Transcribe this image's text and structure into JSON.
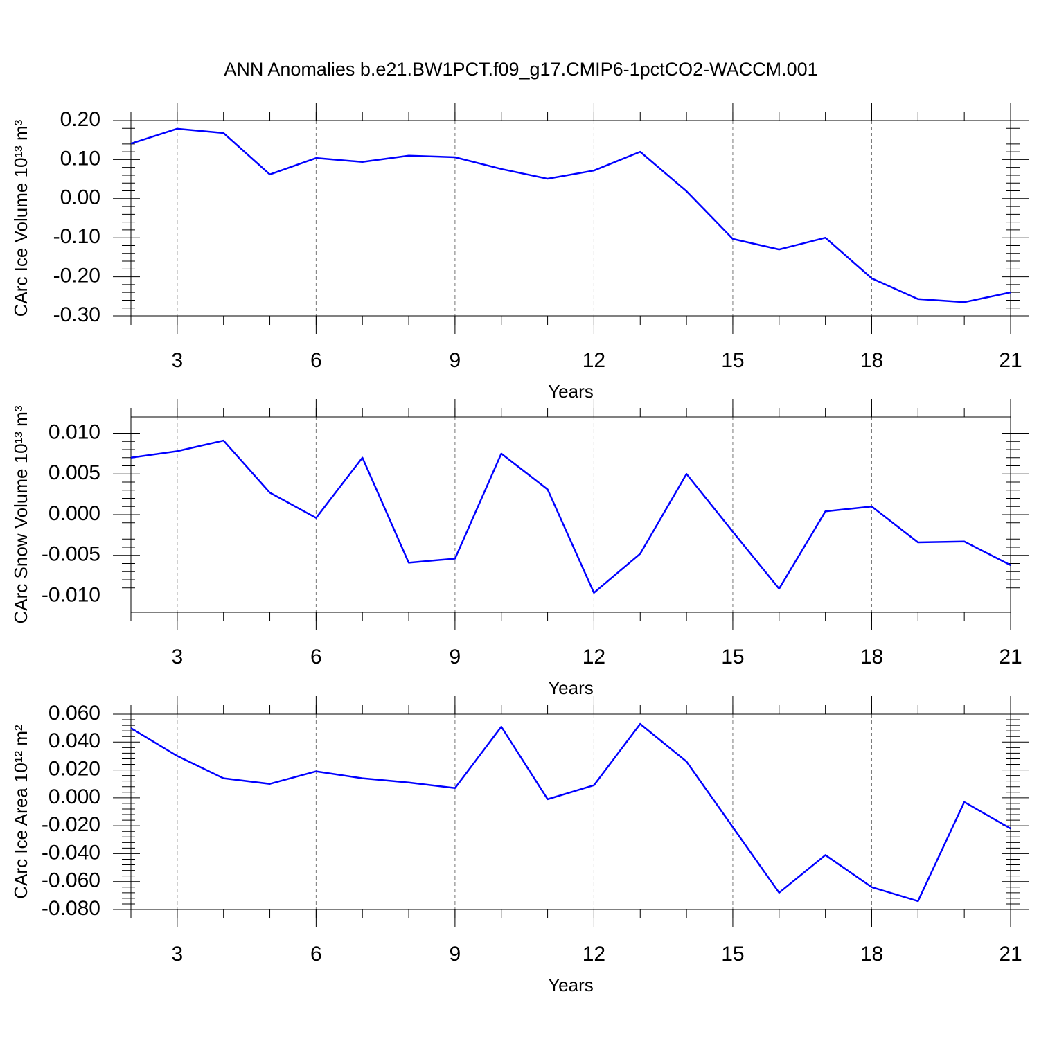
{
  "chart_data": [
    {
      "type": "line",
      "title": "ANN Anomalies b.e21.BW1PCT.f09_g17.CMIP6-1pctCO2-WACCM.001",
      "xlabel": "Years",
      "ylabel": "CArc Ice Volume 10¹³ m³",
      "x": [
        2,
        3,
        4,
        5,
        6,
        7,
        8,
        9,
        10,
        11,
        12,
        13,
        14,
        15,
        16,
        17,
        18,
        19,
        20,
        21
      ],
      "values": [
        0.141,
        0.179,
        0.168,
        0.062,
        0.104,
        0.094,
        0.11,
        0.106,
        0.076,
        0.051,
        0.072,
        0.12,
        0.019,
        -0.103,
        -0.13,
        -0.1,
        -0.204,
        -0.257,
        -0.265,
        -0.24
      ],
      "color": "#0000ff",
      "xlim": [
        2,
        21
      ],
      "xticks": [
        3,
        6,
        9,
        12,
        15,
        18,
        21
      ],
      "ylim": [
        -0.3,
        0.2
      ],
      "yticks": [
        {
          "value": -0.3,
          "label": "-0.30"
        },
        {
          "value": -0.2,
          "label": "-0.20"
        },
        {
          "value": -0.1,
          "label": "-0.10"
        },
        {
          "value": 0,
          "label": "0.00"
        },
        {
          "value": 0.1,
          "label": "0.10"
        },
        {
          "value": 0.2,
          "label": "0.20"
        }
      ],
      "grid": true
    },
    {
      "type": "line",
      "xlabel": "Years",
      "ylabel": "CArc Snow Volume 10¹³ m³",
      "x": [
        2,
        3,
        4,
        5,
        6,
        7,
        8,
        9,
        10,
        11,
        12,
        13,
        14,
        15,
        16,
        17,
        18,
        19,
        20,
        21
      ],
      "values": [
        0.007,
        0.0078,
        0.0091,
        0.0027,
        -0.0004,
        0.007,
        -0.0059,
        -0.0054,
        0.0075,
        0.0031,
        -0.0096,
        -0.0048,
        0.005,
        -0.0021,
        -0.0091,
        0.0004,
        0.001,
        -0.0034,
        -0.0033,
        -0.0062
      ],
      "color": "#0000ff",
      "xlim": [
        2,
        21
      ],
      "xticks": [
        3,
        6,
        9,
        12,
        15,
        18,
        21
      ],
      "ylim": [
        -0.012,
        0.012
      ],
      "yticks": [
        {
          "value": -0.01,
          "label": "-0.010"
        },
        {
          "value": -0.005,
          "label": "-0.005"
        },
        {
          "value": 0,
          "label": "0.000"
        },
        {
          "value": 0.005,
          "label": "0.005"
        },
        {
          "value": 0.01,
          "label": "0.010"
        }
      ],
      "grid": true
    },
    {
      "type": "line",
      "xlabel": "Years",
      "ylabel": "CArc Ice Area 10¹² m²",
      "x": [
        2,
        3,
        4,
        5,
        6,
        7,
        8,
        9,
        10,
        11,
        12,
        13,
        14,
        15,
        16,
        17,
        18,
        19,
        20,
        21
      ],
      "values": [
        0.05,
        0.03,
        0.014,
        0.01,
        0.019,
        0.014,
        0.011,
        0.007,
        0.051,
        -0.001,
        0.009,
        0.053,
        0.026,
        -0.021,
        -0.068,
        -0.041,
        -0.064,
        -0.074,
        -0.003,
        -0.022
      ],
      "color": "#0000ff",
      "xlim": [
        2,
        21
      ],
      "xticks": [
        3,
        6,
        9,
        12,
        15,
        18,
        21
      ],
      "ylim": [
        -0.08,
        0.06
      ],
      "yticks": [
        {
          "value": -0.08,
          "label": "-0.080"
        },
        {
          "value": -0.06,
          "label": "-0.060"
        },
        {
          "value": -0.04,
          "label": "-0.040"
        },
        {
          "value": -0.02,
          "label": "-0.020"
        },
        {
          "value": 0,
          "label": "0.000"
        },
        {
          "value": 0.02,
          "label": "0.020"
        },
        {
          "value": 0.04,
          "label": "0.040"
        },
        {
          "value": 0.06,
          "label": "0.060"
        }
      ],
      "grid": true
    }
  ]
}
